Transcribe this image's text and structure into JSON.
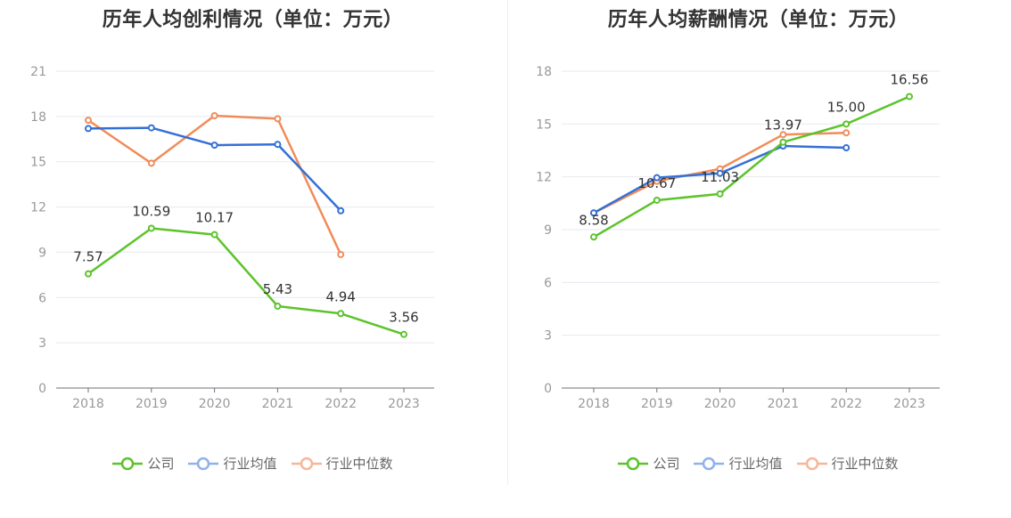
{
  "charts": [
    {
      "id": "profit",
      "title": "历年人均创利情况（单位：万元）",
      "chart_data": {
        "type": "line",
        "title": "历年人均创利情况（单位：万元）",
        "categories": [
          "2018",
          "2019",
          "2020",
          "2021",
          "2022",
          "2023"
        ],
        "ylim": [
          0,
          21
        ],
        "yticks": [
          0,
          3,
          6,
          9,
          12,
          15,
          18,
          21
        ],
        "grid": true,
        "legend_position": "bottom",
        "series": [
          {
            "name": "公司",
            "color": "#5cc32b",
            "values": [
              7.57,
              10.59,
              10.17,
              5.43,
              4.94,
              3.56
            ],
            "labels": [
              "7.57",
              "10.59",
              "10.17",
              "5.43",
              "4.94",
              "3.56"
            ]
          },
          {
            "name": "行业均值",
            "color": "#3470d6",
            "values": [
              17.2,
              17.25,
              16.1,
              16.15,
              11.75,
              null
            ]
          },
          {
            "name": "行业中位数",
            "color": "#f08c5a",
            "values": [
              17.75,
              14.9,
              18.05,
              17.85,
              8.85,
              null
            ]
          }
        ]
      }
    },
    {
      "id": "salary",
      "title": "历年人均薪酬情况（单位：万元）",
      "chart_data": {
        "type": "line",
        "title": "历年人均薪酬情况（单位：万元）",
        "categories": [
          "2018",
          "2019",
          "2020",
          "2021",
          "2022",
          "2023"
        ],
        "ylim": [
          0,
          18
        ],
        "yticks": [
          0,
          3,
          6,
          9,
          12,
          15,
          18
        ],
        "grid": true,
        "legend_position": "bottom",
        "series": [
          {
            "name": "公司",
            "color": "#5cc32b",
            "values": [
              8.58,
              10.67,
              11.03,
              13.97,
              15.0,
              16.56
            ],
            "labels": [
              "8.58",
              "10.67",
              "11.03",
              "13.97",
              "15.00",
              "16.56"
            ]
          },
          {
            "name": "行业均值",
            "color": "#3470d6",
            "values": [
              9.95,
              11.95,
              12.2,
              13.75,
              13.65,
              null
            ]
          },
          {
            "name": "行业中位数",
            "color": "#f08c5a",
            "values": [
              9.95,
              11.75,
              12.45,
              14.4,
              14.5,
              null
            ]
          }
        ]
      }
    }
  ],
  "legend": [
    {
      "name": "公司",
      "color": "#5cc32b"
    },
    {
      "name": "行业均值",
      "color": "#8fb1ec"
    },
    {
      "name": "行业中位数",
      "color": "#f7b699"
    }
  ]
}
